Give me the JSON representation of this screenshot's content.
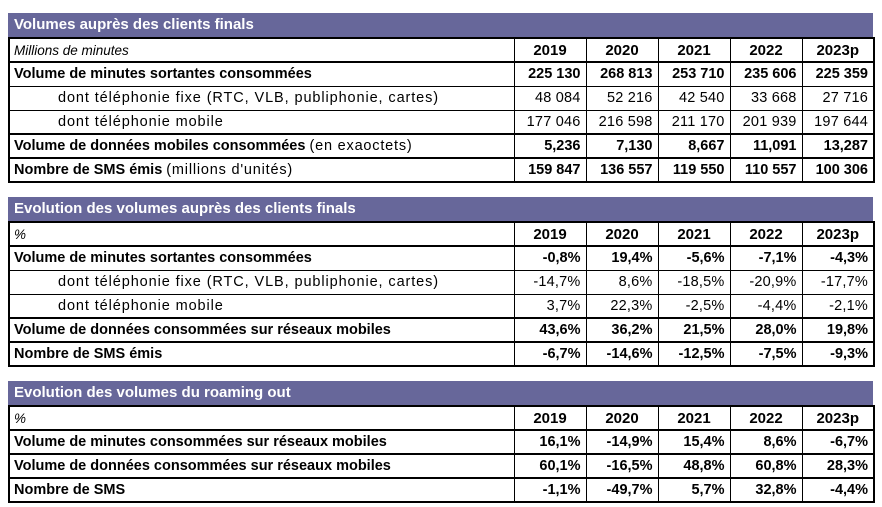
{
  "accent_color": "#67679A",
  "tables": [
    {
      "id": "volumes-clients-finals",
      "title": "Volumes auprès des clients finals",
      "unit_label": "Millions de minutes",
      "years": [
        "2019",
        "2020",
        "2021",
        "2022",
        "2023p"
      ],
      "rows": [
        {
          "label": "Volume de minutes sortantes consommées",
          "label_suffix": "",
          "style": "bold",
          "values": [
            "225 130",
            "268 813",
            "253 710",
            "235 606",
            "225 359"
          ]
        },
        {
          "label": "dont téléphonie fixe (RTC, VLB, publiphonie, cartes)",
          "label_suffix": "",
          "style": "sub",
          "values": [
            "48 084",
            "52 216",
            "42 540",
            "33 668",
            "27 716"
          ]
        },
        {
          "label": "dont téléphonie mobile",
          "label_suffix": "",
          "style": "sub",
          "values": [
            "177 046",
            "216 598",
            "211 170",
            "201 939",
            "197 644"
          ]
        },
        {
          "label": "Volume de données mobiles consommées",
          "label_suffix": "(en exaoctets)",
          "style": "bold",
          "values": [
            "5,236",
            "7,130",
            "8,667",
            "11,091",
            "13,287"
          ]
        },
        {
          "label": "Nombre de SMS émis",
          "label_suffix": "(millions d'unités)",
          "style": "bold",
          "values": [
            "159 847",
            "136 557",
            "119 550",
            "110 557",
            "100 306"
          ]
        }
      ]
    },
    {
      "id": "evolution-clients-finals",
      "title": "Evolution des volumes auprès des clients finals",
      "unit_label": "%",
      "years": [
        "2019",
        "2020",
        "2021",
        "2022",
        "2023p"
      ],
      "rows": [
        {
          "label": "Volume de minutes sortantes consommées",
          "label_suffix": "",
          "style": "bold",
          "values": [
            "-0,8%",
            "19,4%",
            "-5,6%",
            "-7,1%",
            "-4,3%"
          ]
        },
        {
          "label": "dont téléphonie fixe (RTC, VLB, publiphonie, cartes)",
          "label_suffix": "",
          "style": "sub",
          "values": [
            "-14,7%",
            "8,6%",
            "-18,5%",
            "-20,9%",
            "-17,7%"
          ]
        },
        {
          "label": "dont téléphonie mobile",
          "label_suffix": "",
          "style": "sub",
          "values": [
            "3,7%",
            "22,3%",
            "-2,5%",
            "-4,4%",
            "-2,1%"
          ]
        },
        {
          "label": "Volume de données consommées sur réseaux mobiles",
          "label_suffix": "",
          "style": "bold",
          "values": [
            "43,6%",
            "36,2%",
            "21,5%",
            "28,0%",
            "19,8%"
          ]
        },
        {
          "label": "Nombre de SMS émis",
          "label_suffix": "",
          "style": "bold",
          "values": [
            "-6,7%",
            "-14,6%",
            "-12,5%",
            "-7,5%",
            "-9,3%"
          ]
        }
      ]
    },
    {
      "id": "evolution-roaming-out",
      "title": "Evolution des volumes du roaming out",
      "unit_label": "%",
      "years": [
        "2019",
        "2020",
        "2021",
        "2022",
        "2023p"
      ],
      "rows": [
        {
          "label": "Volume de minutes consommées sur réseaux mobiles",
          "label_suffix": "",
          "style": "bold",
          "values": [
            "16,1%",
            "-14,9%",
            "15,4%",
            "8,6%",
            "-6,7%"
          ]
        },
        {
          "label": "Volume de données consommées sur réseaux mobiles",
          "label_suffix": "",
          "style": "bold",
          "values": [
            "60,1%",
            "-16,5%",
            "48,8%",
            "60,8%",
            "28,3%"
          ]
        },
        {
          "label": "Nombre de SMS",
          "label_suffix": "",
          "style": "bold",
          "values": [
            "-1,1%",
            "-49,7%",
            "5,7%",
            "32,8%",
            "-4,4%"
          ]
        }
      ]
    }
  ]
}
